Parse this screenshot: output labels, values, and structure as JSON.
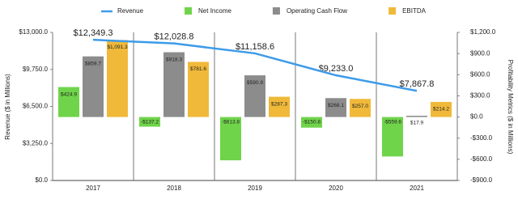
{
  "chart_data": {
    "type": "bar",
    "y_label": "Revenue ($ in Millions)",
    "y2_label": "Profitability Metrics ($ in Millions)",
    "categories": [
      "2017",
      "2018",
      "2019",
      "2020",
      "2021"
    ],
    "series": [
      {
        "name": "Revenue",
        "type": "line",
        "color": "#3d9be9",
        "axis": "y",
        "values": [
          12349.3,
          12028.8,
          11158.6,
          9233.0,
          7867.8
        ],
        "value_labels": [
          "$12,349.3",
          "$12,028.8",
          "$11,158.6",
          "$9,233.0",
          "$7,867.8"
        ]
      },
      {
        "name": "Net Income",
        "type": "bar",
        "color": "#6fd44a",
        "axis": "y2",
        "values": [
          424.9,
          -137.2,
          -613.8,
          -150.8,
          -559.6
        ],
        "value_labels": [
          "$424.9",
          "-$137.2",
          "-$613.8",
          "-$150.8",
          "-$559.6"
        ]
      },
      {
        "name": "Operating Cash Flow",
        "type": "bar",
        "color": "#8c8c8c",
        "axis": "y2",
        "values": [
          859.7,
          918.3,
          590.9,
          268.1,
          17.9
        ],
        "value_labels": [
          "$859.7",
          "$918.3",
          "$590.9",
          "$268.1",
          "$17.9"
        ]
      },
      {
        "name": "EBITDA",
        "type": "bar",
        "color": "#f0b93a",
        "axis": "y2",
        "values": [
          1091.3,
          781.6,
          287.3,
          257.0,
          214.2
        ],
        "value_labels": [
          "$1,091.3",
          "$781.6",
          "$287.3",
          "$257.0",
          "$214.2"
        ]
      }
    ],
    "ylim": [
      0,
      13000
    ],
    "yticks": [
      {
        "value": 0,
        "label": "$0.0"
      },
      {
        "value": 3250,
        "label": "$3,250.0"
      },
      {
        "value": 6500,
        "label": "$6,500.0"
      },
      {
        "value": 9750,
        "label": "$9,750.0"
      },
      {
        "value": 13000,
        "label": "$13,000.0"
      }
    ],
    "y2lim": [
      -900,
      1200
    ],
    "y2ticks": [
      {
        "value": -900,
        "label": "-$900.0"
      },
      {
        "value": -600,
        "label": "-$600.0"
      },
      {
        "value": -300,
        "label": "-$300.0"
      },
      {
        "value": 0,
        "label": "$0.0"
      },
      {
        "value": 300,
        "label": "$300.0"
      },
      {
        "value": 600,
        "label": "$600.0"
      },
      {
        "value": 900,
        "label": "$900.0"
      },
      {
        "value": 1200,
        "label": "$1,200.0"
      }
    ]
  }
}
